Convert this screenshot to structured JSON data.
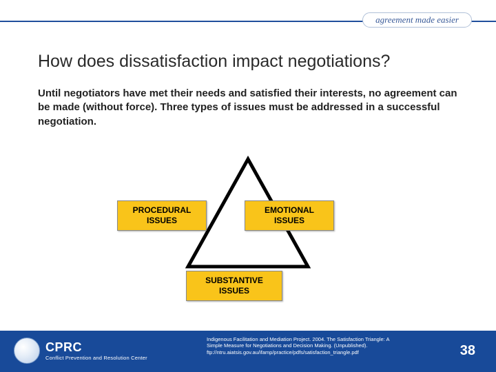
{
  "header": {
    "tagline": "agreement made easier",
    "line_color": "#1f4e9c"
  },
  "title": "How does dissatisfaction impact negotiations?",
  "body": "Until negotiators have met their needs and satisfied their interests, no agreement can be made (without force). Three types of issues must be addressed in a successful negotiation.",
  "triangle": {
    "stroke": "#000000",
    "stroke_width": 5,
    "labels": {
      "left": "PROCEDURAL\nISSUES",
      "right": "EMOTIONAL\nISSUES",
      "bottom": "SUBSTANTIVE\nISSUES"
    },
    "label_bg": "#f9c41a"
  },
  "footer": {
    "bg": "#184a99",
    "logo_main": "CPRC",
    "logo_sub": "Conflict Prevention and Resolution Center",
    "citation": "Indigenous Facilitation and Mediation Project. 2004. The Satisfaction Triangle: A Simple Measure for Negotiations and Decision Making. (Unpublished). ftp://ntru.aiatsis.gov.au/ifamp/practice/pdfs/satisfaction_triangle.pdf",
    "page_number": "38"
  }
}
